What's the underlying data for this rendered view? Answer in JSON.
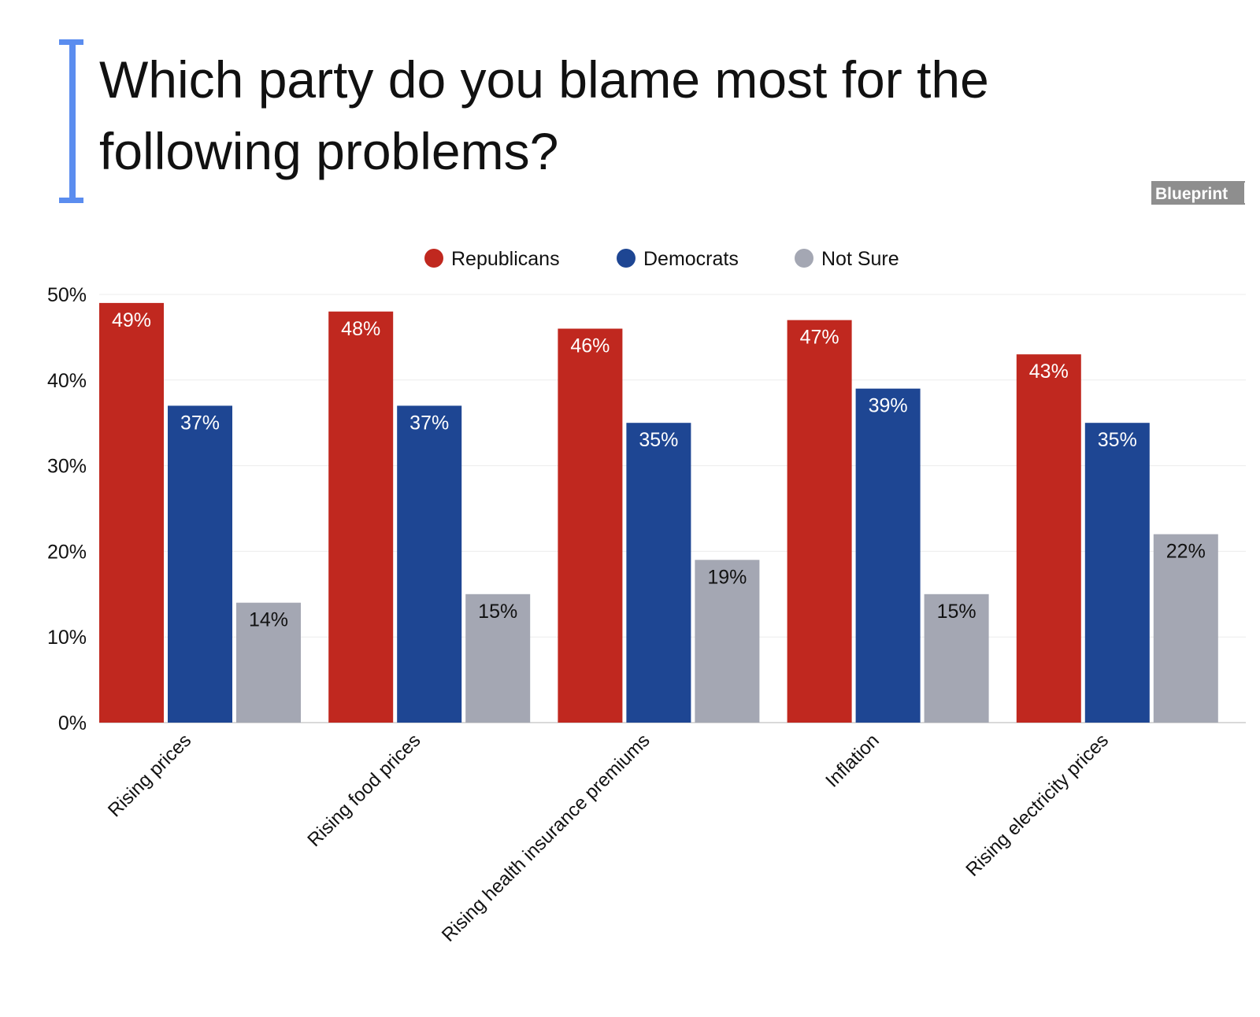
{
  "brand": {
    "name": "Blueprint",
    "accent_color": "#5b8def"
  },
  "chart_data": {
    "type": "bar",
    "title": "Which party do you blame most for the following problems?",
    "title_lines": [
      "Which party do you blame most for the",
      "following problems?"
    ],
    "xlabel": "",
    "ylabel": "",
    "ylim": [
      0,
      50
    ],
    "y_ticks": [
      0,
      10,
      20,
      30,
      40,
      50
    ],
    "y_tick_labels": [
      "0%",
      "10%",
      "20%",
      "30%",
      "40%",
      "50%"
    ],
    "grid": true,
    "legend_position": "top-center",
    "categories": [
      "Rising prices",
      "Rising food prices",
      "Rising health insurance premiums",
      "Inflation",
      "Rising electricity prices"
    ],
    "series": [
      {
        "name": "Republicans",
        "color": "#c0281f",
        "label_color": "#ffffff",
        "values": [
          49,
          48,
          46,
          47,
          43
        ],
        "labels": [
          "49%",
          "48%",
          "46%",
          "47%",
          "43%"
        ]
      },
      {
        "name": "Democrats",
        "color": "#1e4693",
        "label_color": "#ffffff",
        "values": [
          37,
          37,
          35,
          39,
          35
        ],
        "labels": [
          "37%",
          "37%",
          "35%",
          "39%",
          "35%"
        ]
      },
      {
        "name": "Not Sure",
        "color": "#a4a7b3",
        "label_color": "#111111",
        "values": [
          14,
          15,
          19,
          15,
          22
        ],
        "labels": [
          "14%",
          "15%",
          "19%",
          "15%",
          "22%"
        ]
      }
    ]
  }
}
